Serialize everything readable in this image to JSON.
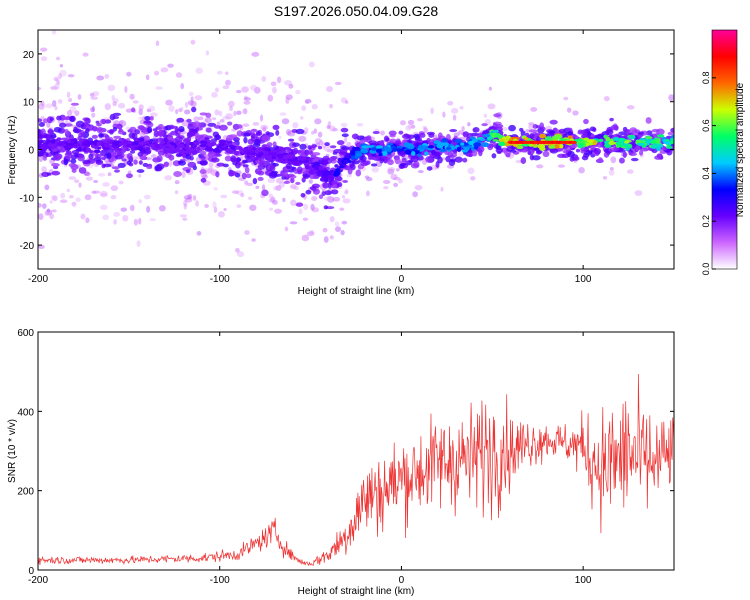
{
  "chart_data": [
    {
      "type": "heatmap",
      "title": "S197.2026.050.04.09.G28",
      "xlabel": "Height of straight line (km)",
      "ylabel": "Frequency (Hz)",
      "xlim": [
        -200,
        150
      ],
      "ylim": [
        -25,
        25
      ],
      "xticks": [
        -200,
        -100,
        0,
        100
      ],
      "yticks": [
        -20,
        -10,
        0,
        10,
        20
      ],
      "colorbar": {
        "label": "Normalized spectral amplitude",
        "range": [
          0,
          1
        ],
        "ticks": [
          0.0,
          0.2,
          0.4,
          0.6,
          0.8
        ],
        "tick_labels": [
          "0.0",
          "0.2",
          "0.4",
          "0.6",
          "0.8"
        ],
        "colors": [
          "#ffffff",
          "#cc66ff",
          "#6600ff",
          "#0000ff",
          "#00ccff",
          "#00ff66",
          "#ccff00",
          "#ff6600",
          "#ff0000",
          "#ff0099"
        ]
      },
      "ridge": {
        "x": [
          -200,
          -150,
          -100,
          -70,
          -50,
          -40,
          -30,
          -20,
          0,
          20,
          40,
          50,
          60,
          100,
          150
        ],
        "freq": [
          1,
          1,
          0.5,
          -1,
          -3,
          -6,
          -2,
          0,
          0,
          0.5,
          1,
          3,
          1.5,
          1.5,
          1.5
        ],
        "amplitude": [
          0.25,
          0.25,
          0.25,
          0.25,
          0.25,
          0.3,
          0.35,
          0.45,
          0.45,
          0.45,
          0.45,
          0.6,
          0.8,
          0.75,
          0.55
        ]
      }
    },
    {
      "type": "line",
      "xlabel": "Height of straight line (km)",
      "ylabel": "SNR (10 * v/v)",
      "xlim": [
        -200,
        150
      ],
      "ylim": [
        0,
        600
      ],
      "xticks": [
        -200,
        -100,
        0,
        100
      ],
      "yticks": [
        0,
        200,
        400,
        600
      ],
      "color": "#ee3333",
      "series": [
        {
          "name": "SNR",
          "x": [
            -200,
            -150,
            -110,
            -90,
            -75,
            -70,
            -65,
            -60,
            -55,
            -50,
            -40,
            -30,
            -25,
            -20,
            -10,
            0,
            10,
            20,
            30,
            40,
            45,
            50,
            55,
            60,
            70,
            80,
            90,
            100,
            105,
            110,
            120,
            125,
            130,
            140,
            150
          ],
          "center": [
            25,
            25,
            30,
            40,
            80,
            100,
            60,
            35,
            20,
            15,
            40,
            90,
            140,
            180,
            200,
            230,
            250,
            270,
            280,
            280,
            300,
            300,
            310,
            300,
            320,
            330,
            320,
            310,
            280,
            260,
            280,
            300,
            280,
            270,
            300
          ],
          "spread": [
            12,
            12,
            15,
            20,
            35,
            40,
            30,
            15,
            10,
            8,
            30,
            70,
            100,
            120,
            130,
            140,
            140,
            150,
            160,
            170,
            180,
            200,
            180,
            120,
            80,
            60,
            60,
            100,
            150,
            180,
            200,
            220,
            200,
            150,
            120
          ]
        }
      ]
    }
  ]
}
